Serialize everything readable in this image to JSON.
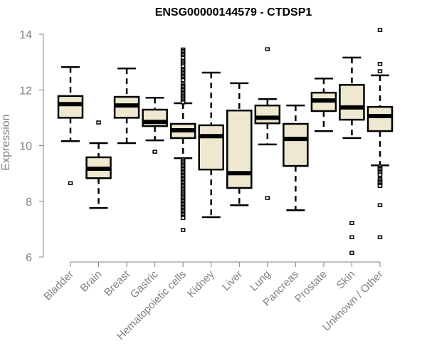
{
  "chart_data": {
    "type": "box",
    "title": "ENSG00000144579 - CTDSP1",
    "xlabel": "",
    "ylabel": "Expression",
    "ylim": [
      6,
      14
    ],
    "yticks": [
      6,
      8,
      10,
      12,
      14
    ],
    "grid": false,
    "box_fill": "#EEE8D0",
    "box_stroke": "#000000",
    "axis_color": "#808080",
    "categories": [
      "Bladder",
      "Brain",
      "Breast",
      "Gastric",
      "Hematopoietic cells",
      "Kidney",
      "Liver",
      "Lung",
      "Pancreas",
      "Prostate",
      "Skin",
      "Unknown / Other"
    ],
    "boxes": [
      {
        "name": "Bladder",
        "whisker_low": 10.16,
        "q1": 11.0,
        "median": 11.49,
        "q3": 11.78,
        "whisker_high": 12.82,
        "outliers": [
          8.65
        ]
      },
      {
        "name": "Brain",
        "whisker_low": 7.76,
        "q1": 8.83,
        "median": 9.17,
        "q3": 9.58,
        "whisker_high": 10.09,
        "outliers": [
          10.83
        ]
      },
      {
        "name": "Breast",
        "whisker_low": 10.09,
        "q1": 11.0,
        "median": 11.44,
        "q3": 11.75,
        "whisker_high": 12.77,
        "outliers": []
      },
      {
        "name": "Gastric",
        "whisker_low": 10.19,
        "q1": 10.7,
        "median": 10.85,
        "q3": 11.29,
        "whisker_high": 11.72,
        "outliers": [
          9.78
        ]
      },
      {
        "name": "Hematopoietic cells",
        "whisker_low": 9.55,
        "q1": 10.27,
        "median": 10.55,
        "q3": 10.78,
        "whisker_high": 11.52,
        "outliers": [
          13.45,
          13.4,
          13.35,
          13.3,
          13.25,
          13.2,
          13.15,
          13.05,
          13.0,
          12.95,
          12.9,
          12.85,
          12.75,
          12.7,
          12.65,
          12.6,
          12.55,
          12.5,
          12.45,
          12.4,
          12.35,
          12.2,
          12.15,
          12.1,
          12.05,
          12.0,
          11.95,
          11.9,
          11.85,
          11.8,
          11.75,
          11.7,
          11.65,
          11.6,
          11.55,
          9.5,
          9.45,
          9.4,
          9.35,
          9.3,
          9.25,
          9.2,
          9.15,
          9.1,
          9.05,
          9.0,
          8.95,
          8.9,
          8.85,
          8.8,
          8.75,
          8.7,
          8.65,
          8.6,
          8.55,
          8.5,
          8.45,
          8.4,
          8.35,
          8.3,
          8.25,
          8.2,
          8.15,
          8.1,
          8.05,
          8.0,
          7.95,
          7.9,
          7.85,
          7.8,
          7.75,
          7.7,
          7.65,
          7.6,
          7.55,
          7.5,
          7.45,
          7.4,
          6.97
        ]
      },
      {
        "name": "Kidney",
        "whisker_low": 7.43,
        "q1": 9.14,
        "median": 10.34,
        "q3": 10.73,
        "whisker_high": 12.62,
        "outliers": []
      },
      {
        "name": "Liver",
        "whisker_low": 7.86,
        "q1": 8.48,
        "median": 9.01,
        "q3": 11.26,
        "whisker_high": 12.24,
        "outliers": []
      },
      {
        "name": "Lung",
        "whisker_low": 10.04,
        "q1": 10.8,
        "median": 11.0,
        "q3": 11.44,
        "whisker_high": 11.67,
        "outliers": [
          13.46,
          8.12
        ]
      },
      {
        "name": "Pancreas",
        "whisker_low": 7.68,
        "q1": 9.27,
        "median": 10.24,
        "q3": 10.78,
        "whisker_high": 11.44,
        "outliers": []
      },
      {
        "name": "Prostate",
        "whisker_low": 10.52,
        "q1": 11.24,
        "median": 11.62,
        "q3": 11.9,
        "whisker_high": 12.41,
        "outliers": []
      },
      {
        "name": "Skin",
        "whisker_low": 10.27,
        "q1": 10.93,
        "median": 11.37,
        "q3": 12.18,
        "whisker_high": 13.16,
        "outliers": [
          7.22,
          6.71,
          6.15
        ]
      },
      {
        "name": "Unknown / Other",
        "whisker_low": 9.29,
        "q1": 10.52,
        "median": 11.06,
        "q3": 11.39,
        "whisker_high": 12.52,
        "outliers": [
          14.15,
          12.93,
          12.67,
          9.25,
          9.2,
          9.15,
          9.1,
          9.05,
          9.0,
          8.95,
          8.8,
          8.75,
          8.7,
          8.65,
          8.6,
          8.55,
          7.86,
          6.71
        ]
      }
    ]
  }
}
